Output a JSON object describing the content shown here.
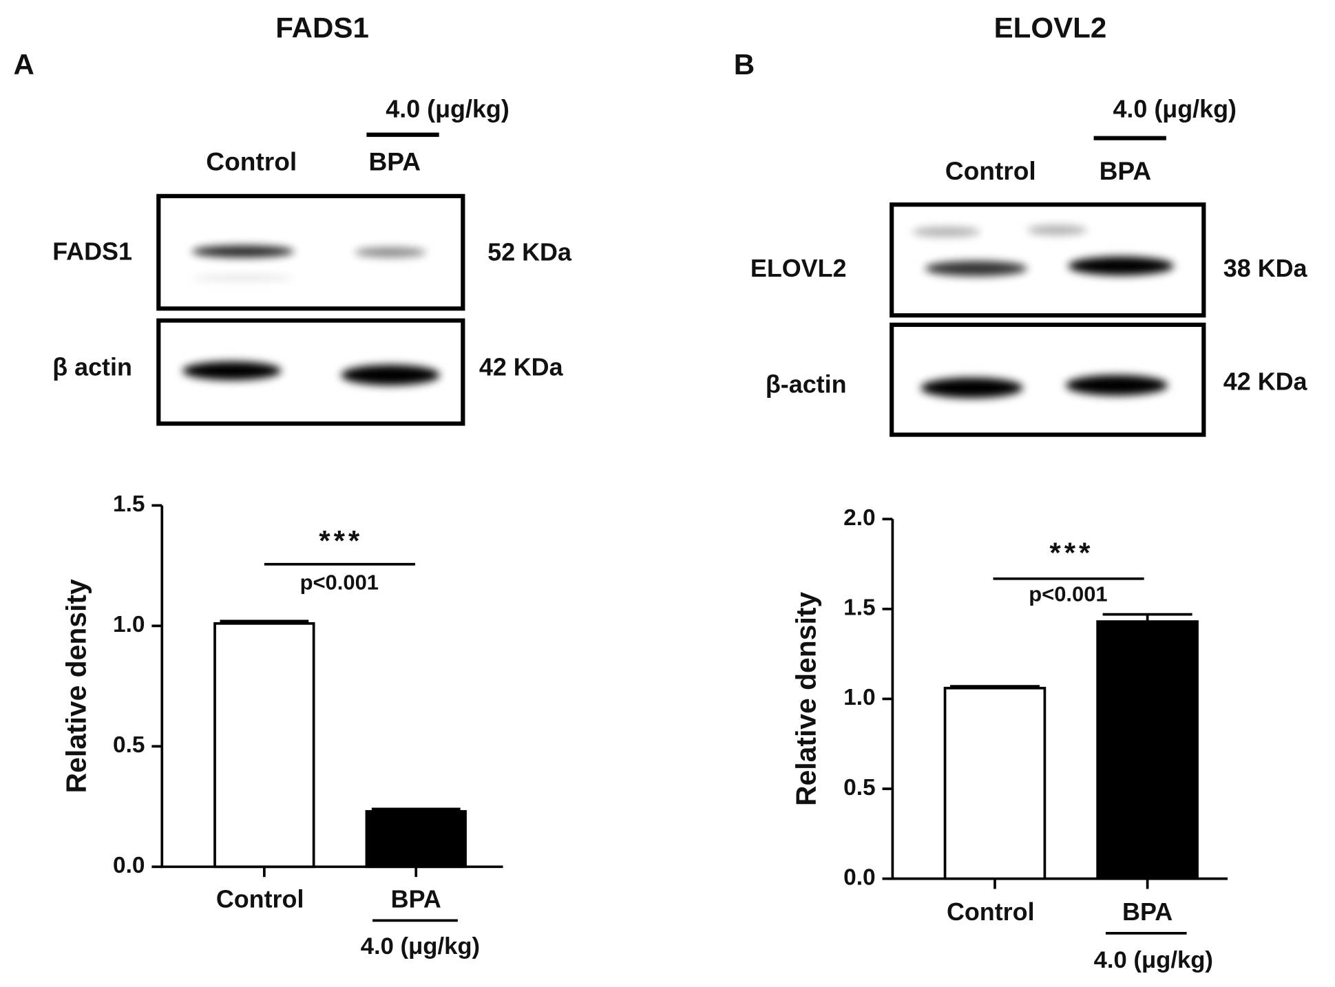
{
  "chart_data": [
    {
      "type": "bar",
      "panel_label": "A",
      "title": "FADS1",
      "blot": {
        "dose": "4.0 (μg/kg)",
        "lanes": [
          "Control",
          "BPA"
        ],
        "rows": [
          {
            "protein": "FADS1",
            "size": "52 KDa"
          },
          {
            "protein": "β actin",
            "size": "42 KDa"
          }
        ]
      },
      "y_label": "Relative density",
      "categories": [
        "Control",
        "BPA"
      ],
      "dose": "4.0 (μg/kg)",
      "values": [
        1.01,
        0.23
      ],
      "errors": [
        0.01,
        0.01
      ],
      "colors": [
        "#ffffff",
        "#000000"
      ],
      "ylim": [
        0,
        1.5
      ],
      "yticks": [
        {
          "value": 0,
          "label": "0.0"
        },
        0.5,
        {
          "value": 1,
          "label": "1.0"
        },
        1.5
      ],
      "significance": {
        "stars": "***",
        "p": "p<0.001"
      }
    },
    {
      "type": "bar",
      "panel_label": "B",
      "title": "ELOVL2",
      "blot": {
        "dose": "4.0 (μg/kg)",
        "lanes": [
          "Control",
          "BPA"
        ],
        "rows": [
          {
            "protein": "ELOVL2",
            "size": "38 KDa"
          },
          {
            "protein": "β-actin",
            "size": "42 KDa"
          }
        ]
      },
      "y_label": "Relative density",
      "categories": [
        "Control",
        "BPA"
      ],
      "dose": "4.0 (μg/kg)",
      "values": [
        1.06,
        1.43
      ],
      "errors": [
        0.01,
        0.04
      ],
      "colors": [
        "#ffffff",
        "#000000"
      ],
      "ylim": [
        0,
        2
      ],
      "yticks": [
        {
          "value": 0,
          "label": "0.0"
        },
        0.5,
        {
          "value": 1,
          "label": "1.0"
        },
        1.5,
        {
          "value": 2,
          "label": "2.0"
        }
      ],
      "significance": {
        "stars": "***",
        "p": "p<0.001"
      }
    }
  ]
}
